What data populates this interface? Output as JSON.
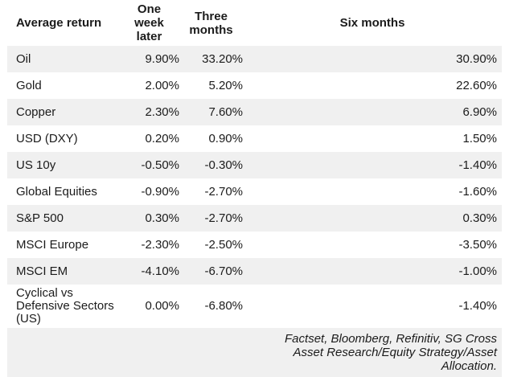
{
  "colors": {
    "stripe": "#f0f0f0",
    "background": "#ffffff",
    "text": "#1b1b1b"
  },
  "table": {
    "headers": {
      "asset": "Average return",
      "one_week": "One week later",
      "three_months": "Three months",
      "six_months": "Six months"
    },
    "rows": [
      {
        "name": "Oil",
        "one_week": "9.90%",
        "three_months": "33.20%",
        "six_months": "30.90%"
      },
      {
        "name": "Gold",
        "one_week": "2.00%",
        "three_months": "5.20%",
        "six_months": "22.60%"
      },
      {
        "name": "Copper",
        "one_week": "2.30%",
        "three_months": "7.60%",
        "six_months": "6.90%"
      },
      {
        "name": "USD (DXY)",
        "one_week": "0.20%",
        "three_months": "0.90%",
        "six_months": "1.50%"
      },
      {
        "name": "US 10y",
        "one_week": "-0.50%",
        "three_months": "-0.30%",
        "six_months": "-1.40%"
      },
      {
        "name": "Global Equities",
        "one_week": "-0.90%",
        "three_months": "-2.70%",
        "six_months": "-1.60%"
      },
      {
        "name": "S&P 500",
        "one_week": "0.30%",
        "three_months": "-2.70%",
        "six_months": "0.30%"
      },
      {
        "name": "MSCI Europe",
        "one_week": "-2.30%",
        "three_months": "-2.50%",
        "six_months": "-3.50%"
      },
      {
        "name": "MSCI EM",
        "one_week": "-4.10%",
        "three_months": "-6.70%",
        "six_months": "-1.00%"
      },
      {
        "name": "Cyclical vs Defensive Sectors (US)",
        "one_week": "0.00%",
        "three_months": "-6.80%",
        "six_months": "-1.40%"
      }
    ]
  },
  "footer": {
    "source": "Factset, Bloomberg, Refinitiv, SG Cross Asset Research/Equity Strategy/Asset Allocation."
  },
  "chart_data": {
    "type": "table",
    "title": "Average return",
    "columns": [
      "Average return",
      "One week later",
      "Three months",
      "Six months"
    ],
    "categories": [
      "Oil",
      "Gold",
      "Copper",
      "USD (DXY)",
      "US 10y",
      "Global Equities",
      "S&P 500",
      "MSCI Europe",
      "MSCI EM",
      "Cyclical vs Defensive Sectors (US)"
    ],
    "series": [
      {
        "name": "One week later",
        "unit": "%",
        "values": [
          9.9,
          2.0,
          2.3,
          0.2,
          -0.5,
          -0.9,
          0.3,
          -2.3,
          -4.1,
          0.0
        ]
      },
      {
        "name": "Three months",
        "unit": "%",
        "values": [
          33.2,
          5.2,
          7.6,
          0.9,
          -0.3,
          -2.7,
          -2.7,
          -2.5,
          -6.7,
          -6.8
        ]
      },
      {
        "name": "Six months",
        "unit": "%",
        "values": [
          30.9,
          22.6,
          6.9,
          1.5,
          -1.4,
          -1.6,
          0.3,
          -3.5,
          -1.0,
          -1.4
        ]
      }
    ],
    "source": "Factset, Bloomberg, Refinitiv, SG Cross Asset Research/Equity Strategy/Asset Allocation.",
    "layout_hints": {
      "row_striping": true,
      "stripe_color": "#f0f0f0",
      "value_alignment": "right",
      "header_bold": true
    }
  }
}
